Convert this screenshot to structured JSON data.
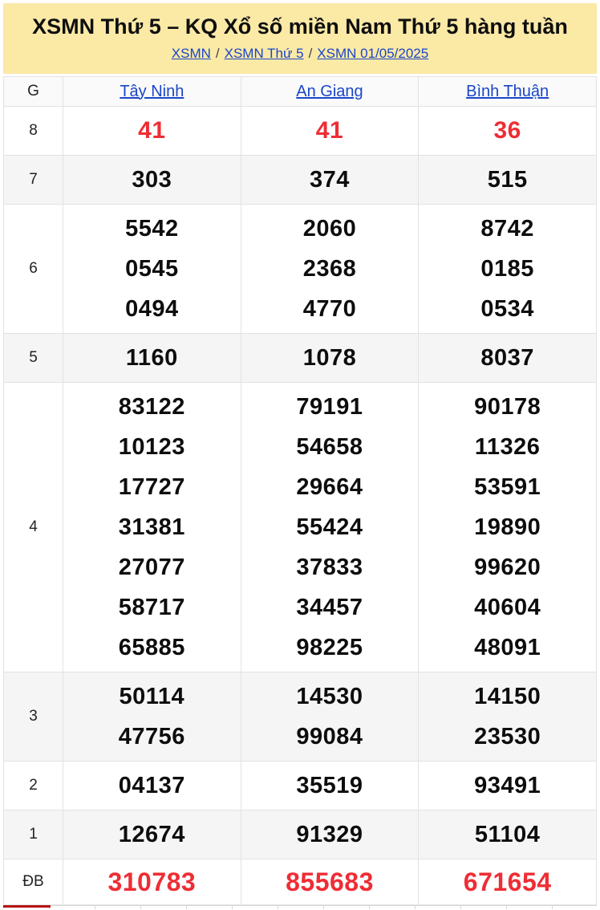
{
  "header": {
    "title": "XSMN Thứ 5 – KQ Xổ số miền Nam Thứ 5 hàng tuần",
    "breadcrumb": [
      {
        "label": "XSMN"
      },
      {
        "label": "XSMN Thứ 5"
      },
      {
        "label": "XSMN 01/05/2025"
      }
    ],
    "separator": "/"
  },
  "table": {
    "corner_label": "G",
    "columns": [
      "Tây Ninh",
      "An Giang",
      "Bình Thuận"
    ],
    "rows": [
      {
        "label": "8",
        "cells": [
          [
            "41"
          ],
          [
            "41"
          ],
          [
            "36"
          ]
        ]
      },
      {
        "label": "7",
        "cells": [
          [
            "303"
          ],
          [
            "374"
          ],
          [
            "515"
          ]
        ]
      },
      {
        "label": "6",
        "cells": [
          [
            "5542",
            "0545",
            "0494"
          ],
          [
            "2060",
            "2368",
            "4770"
          ],
          [
            "8742",
            "0185",
            "0534"
          ]
        ]
      },
      {
        "label": "5",
        "cells": [
          [
            "1160"
          ],
          [
            "1078"
          ],
          [
            "8037"
          ]
        ]
      },
      {
        "label": "4",
        "cells": [
          [
            "83122",
            "10123",
            "17727",
            "31381",
            "27077",
            "58717",
            "65885"
          ],
          [
            "79191",
            "54658",
            "29664",
            "55424",
            "37833",
            "34457",
            "98225"
          ],
          [
            "90178",
            "11326",
            "53591",
            "19890",
            "99620",
            "40604",
            "48091"
          ]
        ]
      },
      {
        "label": "3",
        "cells": [
          [
            "50114",
            "47756"
          ],
          [
            "14530",
            "99084"
          ],
          [
            "14150",
            "23530"
          ]
        ]
      },
      {
        "label": "2",
        "cells": [
          [
            "04137"
          ],
          [
            "35519"
          ],
          [
            "93491"
          ]
        ]
      },
      {
        "label": "1",
        "cells": [
          [
            "12674"
          ],
          [
            "91329"
          ],
          [
            "51104"
          ]
        ]
      },
      {
        "label": "ĐB",
        "cells": [
          [
            "310783"
          ],
          [
            "855683"
          ],
          [
            "671654"
          ]
        ]
      }
    ]
  },
  "colors": {
    "masthead_bg": "#fbe9a6",
    "link_blue": "#1a46c8",
    "number_highlight_red": "#ee2d35",
    "bottom_bar_red": "#b60d0d",
    "zebra_gray": "#f5f5f5"
  }
}
